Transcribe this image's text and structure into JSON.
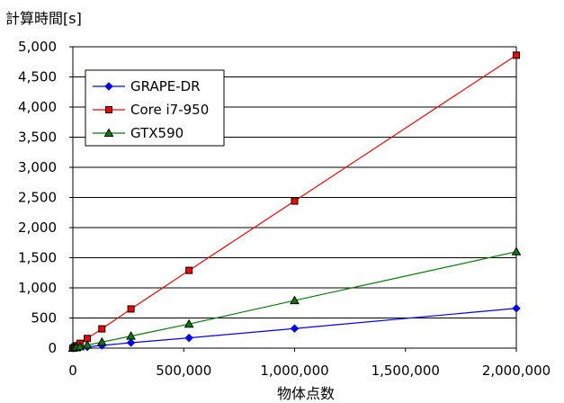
{
  "chart_data": {
    "type": "line",
    "ylabel": "計算時間[s]",
    "xlabel": "物体点数",
    "xlim": [
      0,
      2000000
    ],
    "ylim": [
      0,
      5000
    ],
    "xticks": [
      0,
      500000,
      1000000,
      1500000,
      2000000
    ],
    "xtick_labels": [
      "0",
      "500,000",
      "1,000,000",
      "1,500,000",
      "2,000,000"
    ],
    "yticks": [
      0,
      500,
      1000,
      1500,
      2000,
      2500,
      3000,
      3500,
      4000,
      4500,
      5000
    ],
    "ytick_labels": [
      "0",
      "500",
      "1,000",
      "1,500",
      "2,000",
      "2,500",
      "3,000",
      "3,500",
      "4,000",
      "4,500",
      "5,000"
    ],
    "grid": "horizontal",
    "legend_position": "top-left",
    "series": [
      {
        "name": "GRAPE-DR",
        "color": "#0000ff",
        "marker": "diamond",
        "x": [
          0,
          8000,
          16000,
          32000,
          65000,
          131000,
          262000,
          524000,
          1000000,
          2000000
        ],
        "y": [
          0,
          3,
          5,
          10,
          20,
          45,
          90,
          170,
          325,
          660
        ]
      },
      {
        "name": "Core i7-950",
        "color": "#ff0000",
        "marker": "square",
        "x": [
          0,
          8000,
          16000,
          32000,
          65000,
          131000,
          262000,
          524000,
          1000000,
          2000000
        ],
        "y": [
          0,
          20,
          40,
          80,
          160,
          320,
          650,
          1290,
          2440,
          4860
        ]
      },
      {
        "name": "GTX590",
        "color": "#008000",
        "marker": "triangle",
        "x": [
          0,
          8000,
          16000,
          32000,
          65000,
          131000,
          262000,
          524000,
          1000000,
          2000000
        ],
        "y": [
          0,
          7,
          13,
          25,
          50,
          100,
          200,
          400,
          790,
          1600
        ]
      }
    ]
  }
}
